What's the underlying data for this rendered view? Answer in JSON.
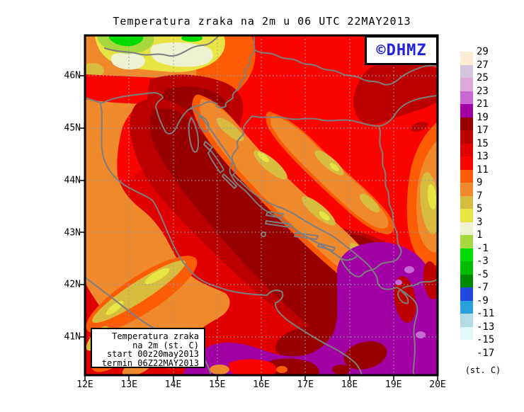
{
  "title": "Temperatura zraka na 2m u 06 UTC 22MAY2013",
  "watermark": {
    "text": "©DHMZ",
    "color": "#2222DD"
  },
  "info_box": {
    "lines": [
      "Temperatura zraka",
      "na 2m (st. C)",
      "start 00z20may2013",
      "termin 06Z22MAY2013"
    ]
  },
  "axes": {
    "x_tick_labels": [
      "12E",
      "13E",
      "14E",
      "15E",
      "16E",
      "17E",
      "18E",
      "19E",
      "20E"
    ],
    "y_tick_labels": [
      "46N",
      "45N",
      "44N",
      "43N",
      "42N",
      "41N"
    ]
  },
  "colorbar": {
    "unit": "(st. C)",
    "tick_labels": [
      "29",
      "27",
      "25",
      "23",
      "21",
      "19",
      "17",
      "15",
      "13",
      "11",
      "9",
      "7",
      "5",
      "3",
      "1",
      "-1",
      "-3",
      "-5",
      "-7",
      "-9",
      "-11",
      "-13",
      "-15",
      "-17"
    ],
    "colors": [
      "#FCECD4",
      "#D4C4DC",
      "#DCA8DC",
      "#C868D4",
      "#A000A4",
      "#980000",
      "#BC0000",
      "#E00000",
      "#FA0400",
      "#FC5C04",
      "#F0882C",
      "#D8BC40",
      "#E8E444",
      "#EEF2D0",
      "#A8D840",
      "#00DC00",
      "#00BC00",
      "#008800",
      "#2048DC",
      "#28A0DC",
      "#B4DCE4",
      "#E0F8F8",
      "#FFFFFF"
    ]
  },
  "map_summary": {
    "variable": "air temperature at 2 m (deg C)",
    "region": "Croatia / Adriatic, 12E-20E, ~40.3N-46.8N",
    "dominant_values_degC": {
      "adriatic_and_inland_dark_red": "15-19",
      "pannonian_plain_bright_red": "11-13",
      "dinaric_mountain_ridges_orange_gold_yellow": "3-11",
      "alps_northwest_green": "-1-5",
      "southeast_adriatic_purple": "19-21"
    }
  }
}
